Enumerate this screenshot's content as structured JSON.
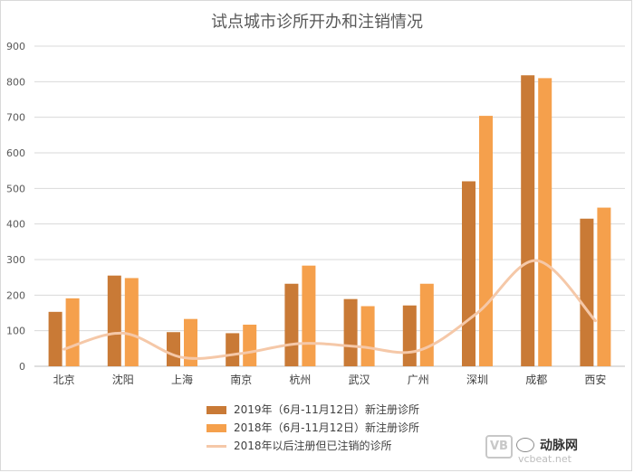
{
  "chart_data": {
    "type": "bar",
    "title": "试点城市诊所开办和注销情况",
    "categories": [
      "北京",
      "沈阳",
      "上海",
      "南京",
      "杭州",
      "武汉",
      "广州",
      "深圳",
      "成都",
      "西安"
    ],
    "ylim": [
      0,
      900
    ],
    "yticks": [
      0,
      100,
      200,
      300,
      400,
      500,
      600,
      700,
      800,
      900
    ],
    "grid": true,
    "legend_position": "bottom",
    "series": [
      {
        "name": "2019年（6月-11月12日）新注册诊所",
        "kind": "bar",
        "color": "#c97a36",
        "values": [
          153,
          255,
          96,
          93,
          232,
          189,
          171,
          520,
          818,
          415
        ]
      },
      {
        "name": "2018年（6月-11月12日）新注册诊所",
        "kind": "bar",
        "color": "#f5a04c",
        "values": [
          191,
          248,
          133,
          117,
          283,
          169,
          232,
          704,
          810,
          446
        ]
      },
      {
        "name": "2018年以后注册但已注销的诊所",
        "kind": "line",
        "color": "#f5c8a8",
        "values": [
          48,
          93,
          25,
          36,
          64,
          55,
          44,
          150,
          297,
          128
        ]
      }
    ]
  },
  "watermark": {
    "badge": "VB",
    "brand": "动脉网",
    "host": "vcbeat.net"
  }
}
